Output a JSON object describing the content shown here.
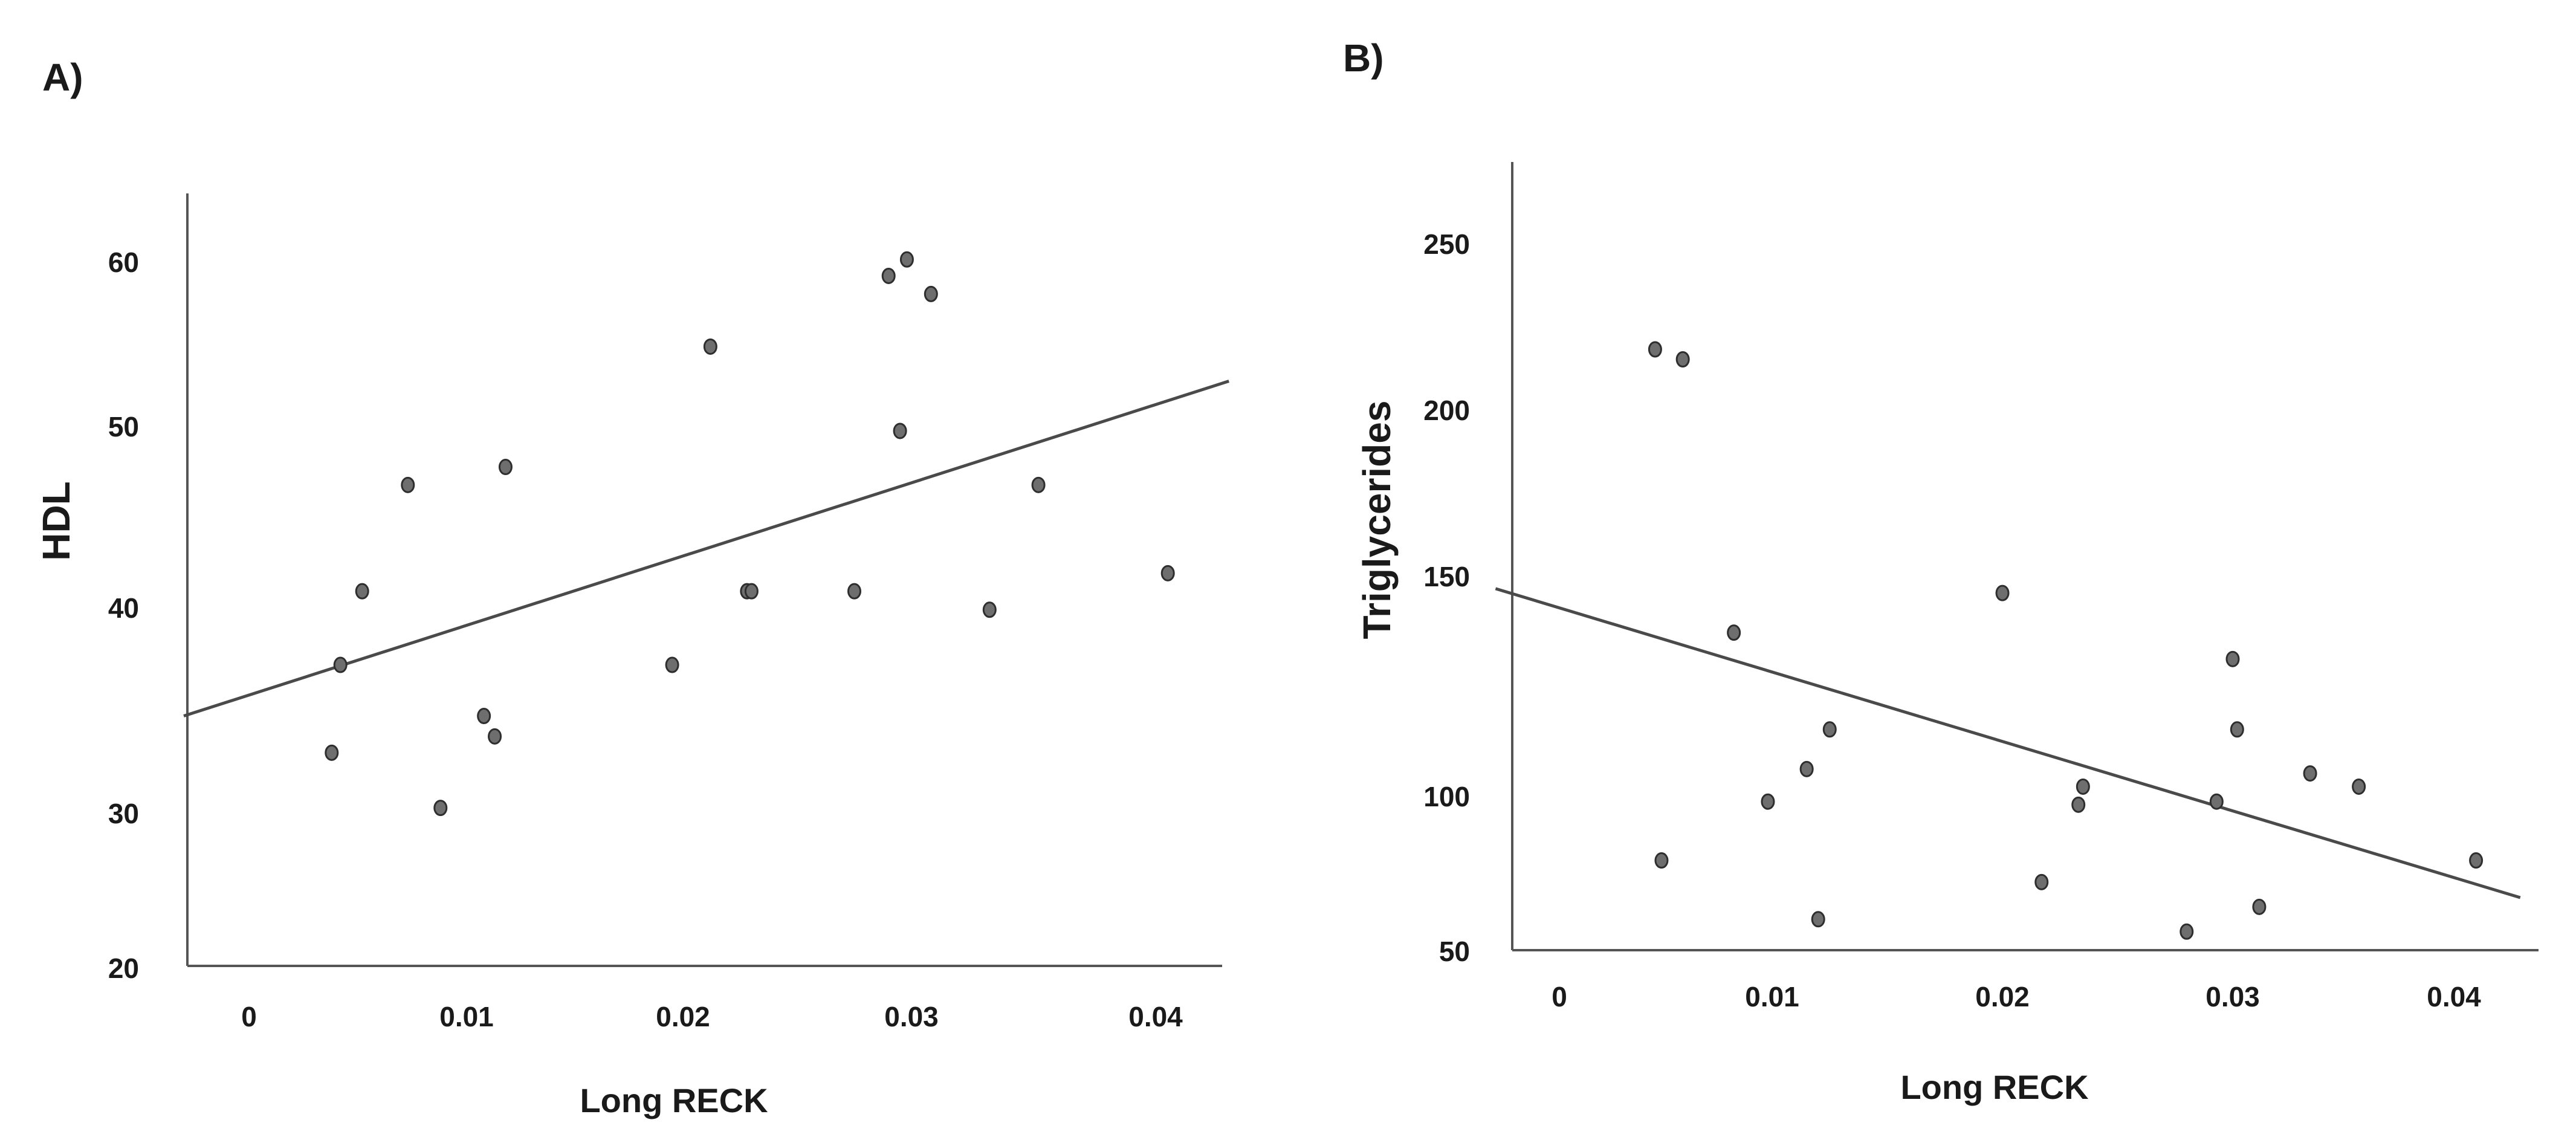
{
  "chart_data": [
    {
      "type": "scatter",
      "panel_label": "A)",
      "xlabel": "Long RECK",
      "ylabel": "HDL",
      "x_ticks": [
        0,
        0.01,
        0.02,
        0.03,
        0.04
      ],
      "x_tick_labels": [
        "0",
        "0.01",
        "0.02",
        "0.03",
        "0.04"
      ],
      "y_ticks": [
        20,
        30,
        40,
        50,
        60
      ],
      "y_tick_labels": [
        "20",
        "30",
        "40",
        "50",
        "60"
      ],
      "xlim": [
        -0.003,
        0.043
      ],
      "points": [
        {
          "x": 0.0038,
          "y": 32.8
        },
        {
          "x": 0.0042,
          "y": 37.1
        },
        {
          "x": 0.0052,
          "y": 40.8
        },
        {
          "x": 0.0073,
          "y": 46.7
        },
        {
          "x": 0.0088,
          "y": 30.1
        },
        {
          "x": 0.0108,
          "y": 34.6
        },
        {
          "x": 0.0113,
          "y": 33.6
        },
        {
          "x": 0.0118,
          "y": 47.7
        },
        {
          "x": 0.0195,
          "y": 37.1
        },
        {
          "x": 0.0212,
          "y": 54.8
        },
        {
          "x": 0.0228,
          "y": 40.8
        },
        {
          "x": 0.023,
          "y": 40.8
        },
        {
          "x": 0.0275,
          "y": 40.8
        },
        {
          "x": 0.029,
          "y": 59.1
        },
        {
          "x": 0.0295,
          "y": 49.7
        },
        {
          "x": 0.0298,
          "y": 60.1
        },
        {
          "x": 0.0308,
          "y": 58.0
        },
        {
          "x": 0.0332,
          "y": 39.8
        },
        {
          "x": 0.0352,
          "y": 46.7
        },
        {
          "x": 0.0405,
          "y": 41.8
        }
      ],
      "fit_line": {
        "x": [
          -0.003,
          0.043
        ],
        "y": [
          34.6,
          52.7
        ]
      }
    },
    {
      "type": "scatter",
      "panel_label": "B)",
      "xlabel": "Long RECK",
      "ylabel": "Triglycerides",
      "x_ticks": [
        0,
        0.01,
        0.02,
        0.03,
        0.04
      ],
      "x_tick_labels": [
        "0",
        "0.01",
        "0.02",
        "0.03",
        "0.04"
      ],
      "y_ticks": [
        50,
        100,
        150,
        200,
        250
      ],
      "y_tick_labels": [
        "50",
        "100",
        "150",
        "200",
        "250"
      ],
      "xlim": [
        -0.003,
        0.043
      ],
      "points": [
        {
          "x": 0.0045,
          "y": 218
        },
        {
          "x": 0.0048,
          "y": 79
        },
        {
          "x": 0.0058,
          "y": 215
        },
        {
          "x": 0.0082,
          "y": 137
        },
        {
          "x": 0.0098,
          "y": 98
        },
        {
          "x": 0.0115,
          "y": 106
        },
        {
          "x": 0.012,
          "y": 60
        },
        {
          "x": 0.0125,
          "y": 115
        },
        {
          "x": 0.02,
          "y": 146
        },
        {
          "x": 0.0217,
          "y": 72
        },
        {
          "x": 0.0233,
          "y": 97
        },
        {
          "x": 0.0235,
          "y": 102
        },
        {
          "x": 0.028,
          "y": 56
        },
        {
          "x": 0.0293,
          "y": 98
        },
        {
          "x": 0.03,
          "y": 131
        },
        {
          "x": 0.0302,
          "y": 115
        },
        {
          "x": 0.0312,
          "y": 64
        },
        {
          "x": 0.0335,
          "y": 105
        },
        {
          "x": 0.0357,
          "y": 102
        },
        {
          "x": 0.041,
          "y": 79
        }
      ],
      "fit_line": {
        "x": [
          -0.003,
          0.043
        ],
        "y": [
          147,
          67
        ]
      }
    }
  ]
}
